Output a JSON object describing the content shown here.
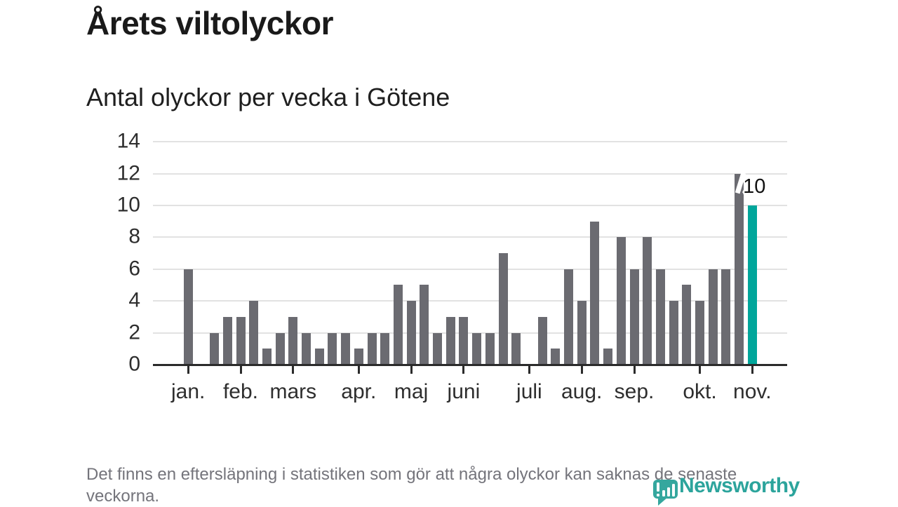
{
  "chart_data": {
    "type": "bar",
    "title": "Årets viltolyckor",
    "subtitle": "Antal olyckor per vecka i Götene",
    "x_unit": "vecka",
    "values": [
      6,
      0,
      2,
      3,
      3,
      4,
      1,
      2,
      3,
      2,
      1,
      2,
      2,
      1,
      2,
      2,
      5,
      4,
      5,
      2,
      3,
      3,
      2,
      2,
      7,
      2,
      0,
      3,
      1,
      6,
      4,
      9,
      1,
      8,
      6,
      8,
      6,
      4,
      5,
      4,
      6,
      6,
      12,
      10
    ],
    "month_ticks": [
      {
        "label": "jan.",
        "week": 1
      },
      {
        "label": "feb.",
        "week": 5
      },
      {
        "label": "mars",
        "week": 9
      },
      {
        "label": "apr.",
        "week": 14
      },
      {
        "label": "maj",
        "week": 18
      },
      {
        "label": "juni",
        "week": 22
      },
      {
        "label": "juli",
        "week": 27
      },
      {
        "label": "aug.",
        "week": 31
      },
      {
        "label": "sep.",
        "week": 35
      },
      {
        "label": "okt.",
        "week": 40
      },
      {
        "label": "nov.",
        "week": 44
      }
    ],
    "ylim": [
      0,
      14
    ],
    "y_ticks": [
      0,
      2,
      4,
      6,
      8,
      10,
      12,
      14
    ],
    "grid": true,
    "legend_position": "none",
    "highlight_week": 44,
    "annotation": {
      "text": "10",
      "week": 44
    },
    "colors": {
      "bar": "#6b6b71",
      "highlight": "#00a69b",
      "gridline": "#e2e2e2",
      "axis": "#2b2b2b",
      "axis_label": "#2e2e2e",
      "annotation": "#111111"
    }
  },
  "footer": {
    "note": "Det finns en eftersläpning i statistiken som gör att några olyckor kan saknas de senaste veckorna."
  },
  "logo": {
    "brand": "Newsworthy",
    "icon": "newsworthy-speech-bubble-bar-chart-icon",
    "color": "#2ca49c"
  }
}
